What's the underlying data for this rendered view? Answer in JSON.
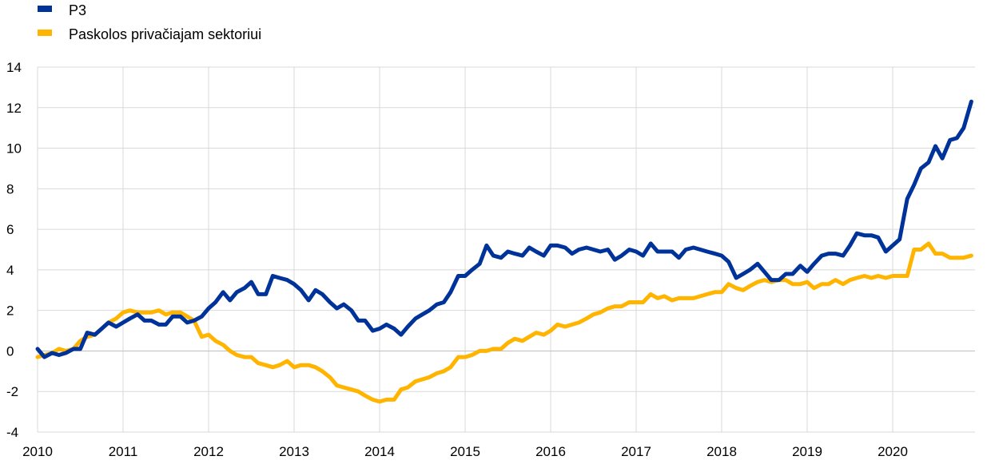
{
  "chart_data": {
    "type": "line",
    "title": "",
    "xlabel": "",
    "ylabel": "",
    "xlim": [
      2010,
      2020.917
    ],
    "ylim": [
      -4,
      14
    ],
    "y_ticks": [
      -4,
      -2,
      0,
      2,
      4,
      6,
      8,
      10,
      12,
      14
    ],
    "x_tick_labels": [
      "2010",
      "2011",
      "2012",
      "2013",
      "2014",
      "2015",
      "2016",
      "2017",
      "2018",
      "2019",
      "2020"
    ],
    "x_tick_values": [
      2010,
      2011,
      2012,
      2013,
      2014,
      2015,
      2016,
      2017,
      2018,
      2019,
      2020
    ],
    "grid": "vertical and horizontal",
    "legend_position": "top-left",
    "series": [
      {
        "name": "P3",
        "color": "#003399",
        "points": [
          [
            2010.0,
            0.1
          ],
          [
            2010.08,
            -0.3
          ],
          [
            2010.17,
            -0.1
          ],
          [
            2010.25,
            -0.2
          ],
          [
            2010.33,
            -0.1
          ],
          [
            2010.42,
            0.1
          ],
          [
            2010.5,
            0.1
          ],
          [
            2010.58,
            0.9
          ],
          [
            2010.67,
            0.8
          ],
          [
            2010.75,
            1.1
          ],
          [
            2010.83,
            1.4
          ],
          [
            2010.92,
            1.2
          ],
          [
            2011.0,
            1.4
          ],
          [
            2011.08,
            1.6
          ],
          [
            2011.17,
            1.8
          ],
          [
            2011.25,
            1.5
          ],
          [
            2011.33,
            1.5
          ],
          [
            2011.42,
            1.3
          ],
          [
            2011.5,
            1.3
          ],
          [
            2011.58,
            1.7
          ],
          [
            2011.67,
            1.7
          ],
          [
            2011.75,
            1.4
          ],
          [
            2011.83,
            1.5
          ],
          [
            2011.92,
            1.7
          ],
          [
            2012.0,
            2.1
          ],
          [
            2012.08,
            2.4
          ],
          [
            2012.17,
            2.9
          ],
          [
            2012.25,
            2.5
          ],
          [
            2012.33,
            2.9
          ],
          [
            2012.42,
            3.1
          ],
          [
            2012.5,
            3.4
          ],
          [
            2012.58,
            2.8
          ],
          [
            2012.67,
            2.8
          ],
          [
            2012.75,
            3.7
          ],
          [
            2012.83,
            3.6
          ],
          [
            2012.92,
            3.5
          ],
          [
            2013.0,
            3.3
          ],
          [
            2013.08,
            3.0
          ],
          [
            2013.17,
            2.5
          ],
          [
            2013.25,
            3.0
          ],
          [
            2013.33,
            2.8
          ],
          [
            2013.42,
            2.4
          ],
          [
            2013.5,
            2.1
          ],
          [
            2013.58,
            2.3
          ],
          [
            2013.67,
            2.0
          ],
          [
            2013.75,
            1.5
          ],
          [
            2013.83,
            1.5
          ],
          [
            2013.92,
            1.0
          ],
          [
            2014.0,
            1.1
          ],
          [
            2014.08,
            1.3
          ],
          [
            2014.17,
            1.1
          ],
          [
            2014.25,
            0.8
          ],
          [
            2014.33,
            1.2
          ],
          [
            2014.42,
            1.6
          ],
          [
            2014.5,
            1.8
          ],
          [
            2014.58,
            2.0
          ],
          [
            2014.67,
            2.3
          ],
          [
            2014.75,
            2.4
          ],
          [
            2014.83,
            2.9
          ],
          [
            2014.92,
            3.7
          ],
          [
            2015.0,
            3.7
          ],
          [
            2015.08,
            4.0
          ],
          [
            2015.17,
            4.3
          ],
          [
            2015.25,
            5.2
          ],
          [
            2015.33,
            4.7
          ],
          [
            2015.42,
            4.6
          ],
          [
            2015.5,
            4.9
          ],
          [
            2015.58,
            4.8
          ],
          [
            2015.67,
            4.7
          ],
          [
            2015.75,
            5.1
          ],
          [
            2015.83,
            4.9
          ],
          [
            2015.92,
            4.7
          ],
          [
            2016.0,
            5.2
          ],
          [
            2016.08,
            5.2
          ],
          [
            2016.17,
            5.1
          ],
          [
            2016.25,
            4.8
          ],
          [
            2016.33,
            5.0
          ],
          [
            2016.42,
            5.1
          ],
          [
            2016.5,
            5.0
          ],
          [
            2016.58,
            4.9
          ],
          [
            2016.67,
            5.0
          ],
          [
            2016.75,
            4.5
          ],
          [
            2016.83,
            4.7
          ],
          [
            2016.92,
            5.0
          ],
          [
            2017.0,
            4.9
          ],
          [
            2017.08,
            4.7
          ],
          [
            2017.17,
            5.3
          ],
          [
            2017.25,
            4.9
          ],
          [
            2017.33,
            4.9
          ],
          [
            2017.42,
            4.9
          ],
          [
            2017.5,
            4.6
          ],
          [
            2017.58,
            5.0
          ],
          [
            2017.67,
            5.1
          ],
          [
            2017.75,
            5.0
          ],
          [
            2017.83,
            4.9
          ],
          [
            2017.92,
            4.8
          ],
          [
            2018.0,
            4.7
          ],
          [
            2018.08,
            4.4
          ],
          [
            2018.17,
            3.6
          ],
          [
            2018.25,
            3.8
          ],
          [
            2018.33,
            4.0
          ],
          [
            2018.42,
            4.3
          ],
          [
            2018.5,
            3.9
          ],
          [
            2018.58,
            3.5
          ],
          [
            2018.67,
            3.5
          ],
          [
            2018.75,
            3.8
          ],
          [
            2018.83,
            3.8
          ],
          [
            2018.92,
            4.2
          ],
          [
            2019.0,
            3.9
          ],
          [
            2019.08,
            4.3
          ],
          [
            2019.17,
            4.7
          ],
          [
            2019.25,
            4.8
          ],
          [
            2019.33,
            4.8
          ],
          [
            2019.42,
            4.7
          ],
          [
            2019.5,
            5.2
          ],
          [
            2019.58,
            5.8
          ],
          [
            2019.67,
            5.7
          ],
          [
            2019.75,
            5.7
          ],
          [
            2019.83,
            5.6
          ],
          [
            2019.92,
            4.9
          ],
          [
            2020.0,
            5.2
          ],
          [
            2020.08,
            5.5
          ],
          [
            2020.17,
            7.5
          ],
          [
            2020.25,
            8.2
          ],
          [
            2020.33,
            9.0
          ],
          [
            2020.42,
            9.3
          ],
          [
            2020.5,
            10.1
          ],
          [
            2020.58,
            9.5
          ],
          [
            2020.67,
            10.4
          ],
          [
            2020.75,
            10.5
          ],
          [
            2020.83,
            11.0
          ],
          [
            2020.92,
            12.3
          ]
        ]
      },
      {
        "name": "Paskolos privačiajam sektoriui",
        "color": "#ffb400",
        "points": [
          [
            2010.0,
            -0.3
          ],
          [
            2010.08,
            -0.2
          ],
          [
            2010.17,
            -0.1
          ],
          [
            2010.25,
            0.1
          ],
          [
            2010.33,
            0.0
          ],
          [
            2010.42,
            0.1
          ],
          [
            2010.5,
            0.5
          ],
          [
            2010.58,
            0.7
          ],
          [
            2010.67,
            0.8
          ],
          [
            2010.75,
            1.1
          ],
          [
            2010.83,
            1.4
          ],
          [
            2010.92,
            1.6
          ],
          [
            2011.0,
            1.9
          ],
          [
            2011.08,
            2.0
          ],
          [
            2011.17,
            1.9
          ],
          [
            2011.25,
            1.9
          ],
          [
            2011.33,
            1.9
          ],
          [
            2011.42,
            2.0
          ],
          [
            2011.5,
            1.8
          ],
          [
            2011.58,
            1.9
          ],
          [
            2011.67,
            1.9
          ],
          [
            2011.75,
            1.7
          ],
          [
            2011.83,
            1.5
          ],
          [
            2011.92,
            0.7
          ],
          [
            2012.0,
            0.8
          ],
          [
            2012.08,
            0.5
          ],
          [
            2012.17,
            0.3
          ],
          [
            2012.25,
            0.0
          ],
          [
            2012.33,
            -0.2
          ],
          [
            2012.42,
            -0.3
          ],
          [
            2012.5,
            -0.3
          ],
          [
            2012.58,
            -0.6
          ],
          [
            2012.67,
            -0.7
          ],
          [
            2012.75,
            -0.8
          ],
          [
            2012.83,
            -0.7
          ],
          [
            2012.92,
            -0.5
          ],
          [
            2013.0,
            -0.8
          ],
          [
            2013.08,
            -0.7
          ],
          [
            2013.17,
            -0.7
          ],
          [
            2013.25,
            -0.8
          ],
          [
            2013.33,
            -1.0
          ],
          [
            2013.42,
            -1.3
          ],
          [
            2013.5,
            -1.7
          ],
          [
            2013.58,
            -1.8
          ],
          [
            2013.67,
            -1.9
          ],
          [
            2013.75,
            -2.0
          ],
          [
            2013.83,
            -2.2
          ],
          [
            2013.92,
            -2.4
          ],
          [
            2014.0,
            -2.5
          ],
          [
            2014.08,
            -2.4
          ],
          [
            2014.17,
            -2.4
          ],
          [
            2014.25,
            -1.9
          ],
          [
            2014.33,
            -1.8
          ],
          [
            2014.42,
            -1.5
          ],
          [
            2014.5,
            -1.4
          ],
          [
            2014.58,
            -1.3
          ],
          [
            2014.67,
            -1.1
          ],
          [
            2014.75,
            -1.0
          ],
          [
            2014.83,
            -0.8
          ],
          [
            2014.92,
            -0.3
          ],
          [
            2015.0,
            -0.3
          ],
          [
            2015.08,
            -0.2
          ],
          [
            2015.17,
            0.0
          ],
          [
            2015.25,
            0.0
          ],
          [
            2015.33,
            0.1
          ],
          [
            2015.42,
            0.1
          ],
          [
            2015.5,
            0.4
          ],
          [
            2015.58,
            0.6
          ],
          [
            2015.67,
            0.5
          ],
          [
            2015.75,
            0.7
          ],
          [
            2015.83,
            0.9
          ],
          [
            2015.92,
            0.8
          ],
          [
            2016.0,
            1.0
          ],
          [
            2016.08,
            1.3
          ],
          [
            2016.17,
            1.2
          ],
          [
            2016.25,
            1.3
          ],
          [
            2016.33,
            1.4
          ],
          [
            2016.42,
            1.6
          ],
          [
            2016.5,
            1.8
          ],
          [
            2016.58,
            1.9
          ],
          [
            2016.67,
            2.1
          ],
          [
            2016.75,
            2.2
          ],
          [
            2016.83,
            2.2
          ],
          [
            2016.92,
            2.4
          ],
          [
            2017.0,
            2.4
          ],
          [
            2017.08,
            2.4
          ],
          [
            2017.17,
            2.8
          ],
          [
            2017.25,
            2.6
          ],
          [
            2017.33,
            2.7
          ],
          [
            2017.42,
            2.5
          ],
          [
            2017.5,
            2.6
          ],
          [
            2017.58,
            2.6
          ],
          [
            2017.67,
            2.6
          ],
          [
            2017.75,
            2.7
          ],
          [
            2017.83,
            2.8
          ],
          [
            2017.92,
            2.9
          ],
          [
            2018.0,
            2.9
          ],
          [
            2018.08,
            3.3
          ],
          [
            2018.17,
            3.1
          ],
          [
            2018.25,
            3.0
          ],
          [
            2018.33,
            3.2
          ],
          [
            2018.42,
            3.4
          ],
          [
            2018.5,
            3.5
          ],
          [
            2018.58,
            3.4
          ],
          [
            2018.67,
            3.5
          ],
          [
            2018.75,
            3.5
          ],
          [
            2018.83,
            3.3
          ],
          [
            2018.92,
            3.3
          ],
          [
            2019.0,
            3.4
          ],
          [
            2019.08,
            3.1
          ],
          [
            2019.17,
            3.3
          ],
          [
            2019.25,
            3.3
          ],
          [
            2019.33,
            3.5
          ],
          [
            2019.42,
            3.3
          ],
          [
            2019.5,
            3.5
          ],
          [
            2019.58,
            3.6
          ],
          [
            2019.67,
            3.7
          ],
          [
            2019.75,
            3.6
          ],
          [
            2019.83,
            3.7
          ],
          [
            2019.92,
            3.6
          ],
          [
            2020.0,
            3.7
          ],
          [
            2020.08,
            3.7
          ],
          [
            2020.17,
            3.7
          ],
          [
            2020.25,
            5.0
          ],
          [
            2020.33,
            5.0
          ],
          [
            2020.42,
            5.3
          ],
          [
            2020.5,
            4.8
          ],
          [
            2020.58,
            4.8
          ],
          [
            2020.67,
            4.6
          ],
          [
            2020.75,
            4.6
          ],
          [
            2020.83,
            4.6
          ],
          [
            2020.92,
            4.7
          ]
        ]
      }
    ]
  }
}
